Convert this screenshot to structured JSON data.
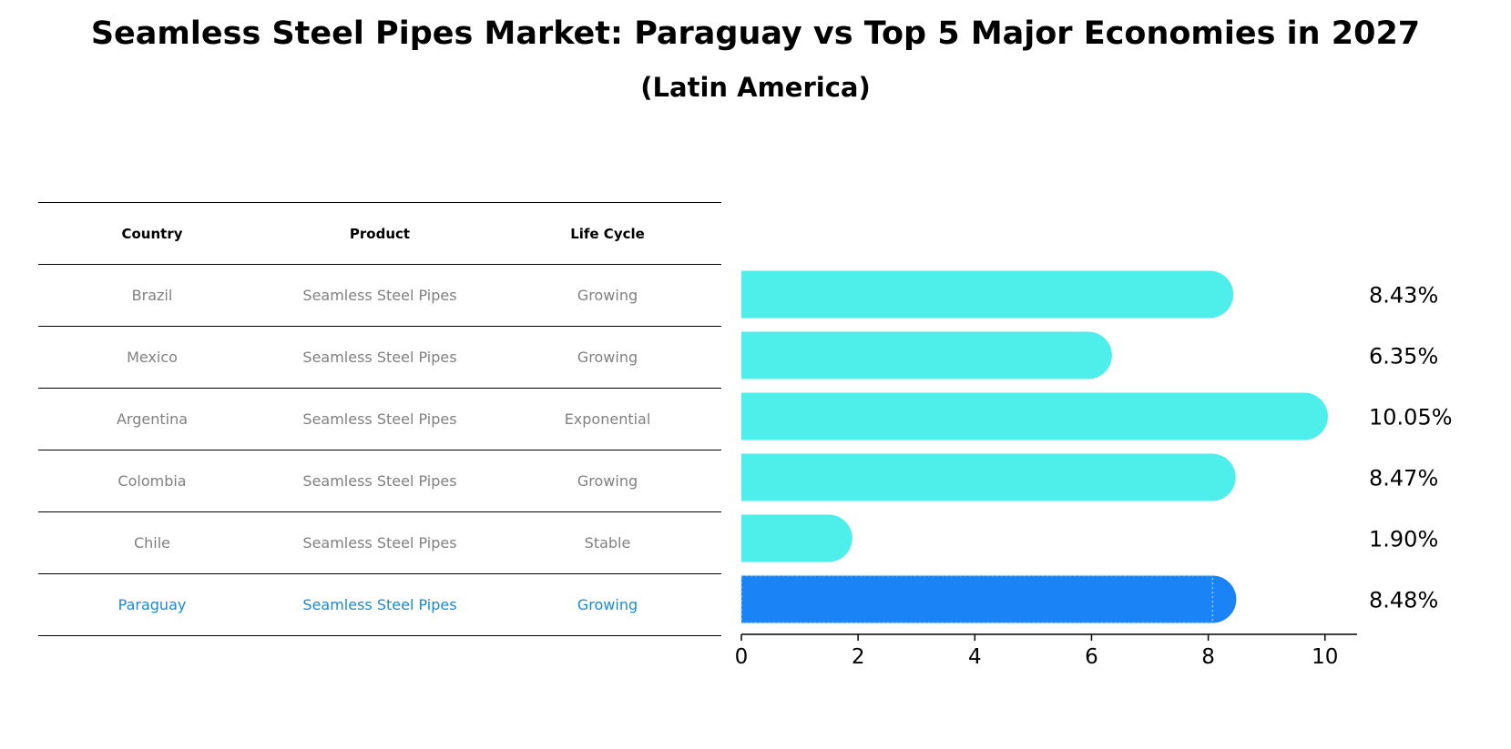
{
  "title": "Seamless Steel Pipes Market: Paraguay vs Top 5 Major Economies in 2027",
  "subtitle": "(Latin America)",
  "table": {
    "headers": [
      "Country",
      "Product",
      "Life Cycle"
    ],
    "rows": [
      {
        "country": "Brazil",
        "product": "Seamless Steel Pipes",
        "life_cycle": "Growing"
      },
      {
        "country": "Mexico",
        "product": "Seamless Steel Pipes",
        "life_cycle": "Growing"
      },
      {
        "country": "Argentina",
        "product": "Seamless Steel Pipes",
        "life_cycle": "Exponential"
      },
      {
        "country": "Colombia",
        "product": "Seamless Steel Pipes",
        "life_cycle": "Growing"
      },
      {
        "country": "Chile",
        "product": "Seamless Steel Pipes",
        "life_cycle": "Stable"
      },
      {
        "country": "Paraguay",
        "product": "Seamless Steel Pipes",
        "life_cycle": "Growing"
      }
    ]
  },
  "chart_data": {
    "type": "bar",
    "orientation": "horizontal",
    "categories": [
      "Brazil",
      "Mexico",
      "Argentina",
      "Colombia",
      "Chile",
      "Paraguay"
    ],
    "values": [
      8.43,
      6.35,
      10.05,
      8.47,
      1.9,
      8.48
    ],
    "value_labels": [
      "8.43%",
      "6.35%",
      "10.05%",
      "8.47%",
      "1.90%",
      "8.48%"
    ],
    "highlight_category": "Paraguay",
    "xlim": [
      0,
      10.55
    ],
    "xticks": [
      0,
      2,
      4,
      6,
      8,
      10
    ],
    "grid": false,
    "colors": {
      "default": "#4eeeea",
      "highlight": "#1a83f5",
      "highlight_text": "#1a8ad4"
    }
  }
}
